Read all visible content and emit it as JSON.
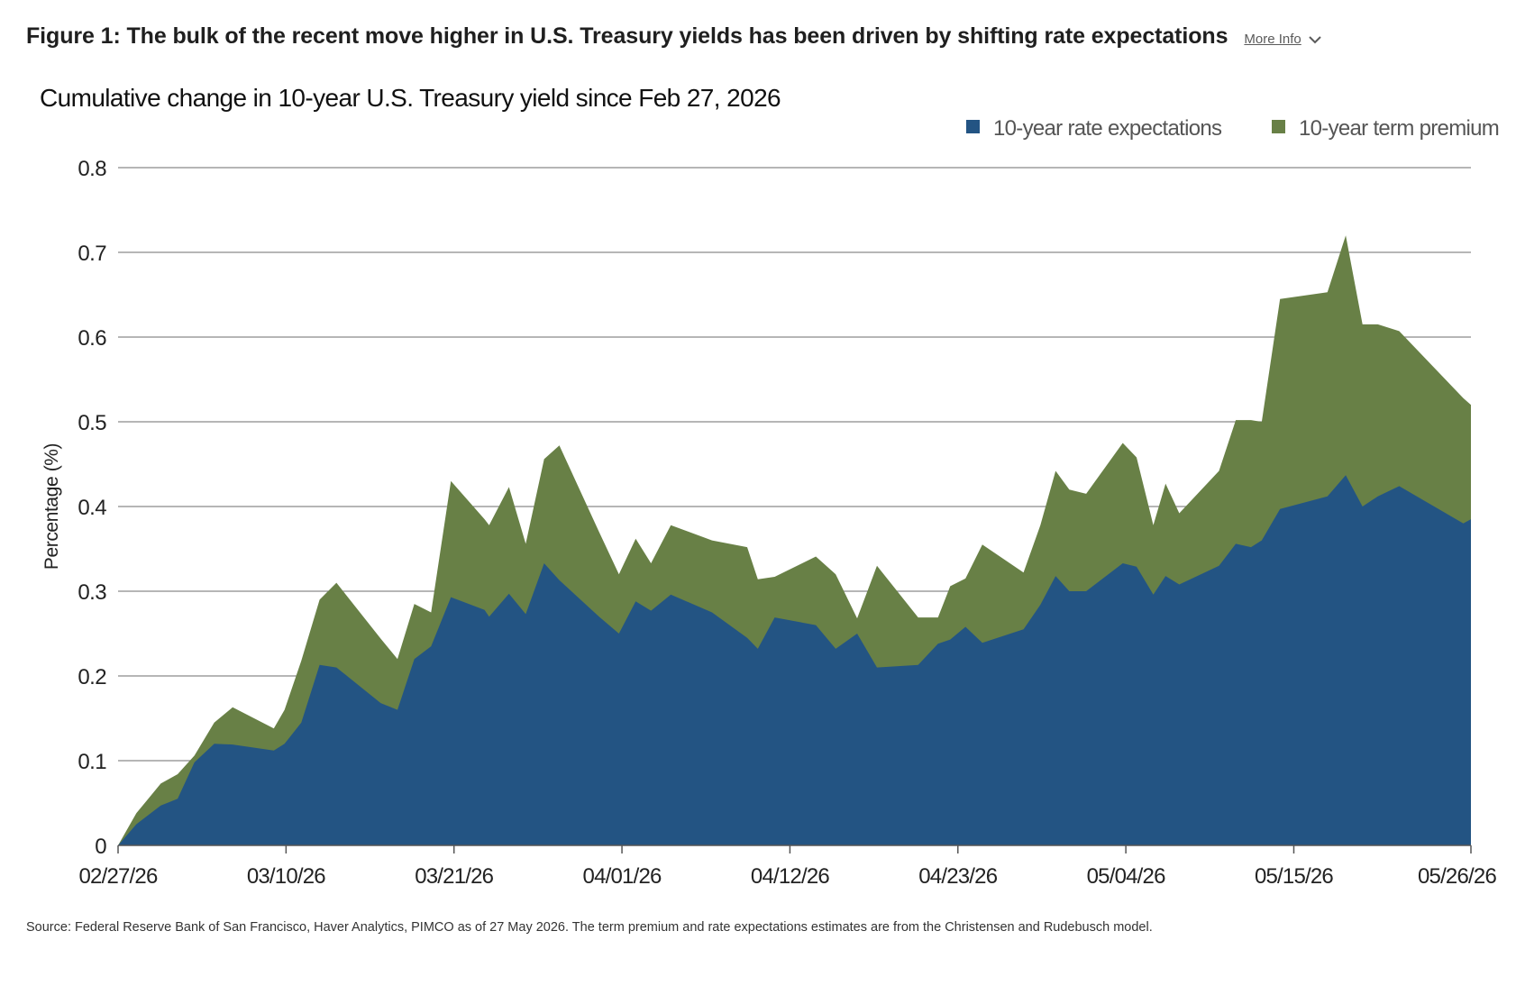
{
  "header": {
    "figure_title": "Figure 1: The bulk of the recent move higher in U.S. Treasury yields has been driven by shifting rate expectations",
    "more_info_label": "More Info"
  },
  "icons": {
    "more_info": "chevron-down-icon"
  },
  "colors": {
    "rate_expectations": "#235483",
    "term_premium": "#688046",
    "gridline": "#8a8a8a",
    "axis_text": "#222222",
    "legend_text": "#555555"
  },
  "source_note": "Source: Federal Reserve Bank of San Francisco, Haver Analytics, PIMCO as of 27 May 2026. The term premium and rate expectations estimates are from the Christensen and Rudebusch model.",
  "chart_data": {
    "type": "area",
    "stacked": true,
    "title": "Cumulative change in 10-year U.S. Treasury yield since Feb 27, 2026",
    "xlabel": "",
    "ylabel": "Percentage (%)",
    "ylim": [
      0,
      0.8
    ],
    "yticks": [
      "0",
      "0.1",
      "0.2",
      "0.3",
      "0.4",
      "0.5",
      "0.6",
      "0.7",
      "0.8"
    ],
    "xticks": [
      {
        "label": "02/27/26",
        "day": 0
      },
      {
        "label": "03/10/26",
        "day": 11
      },
      {
        "label": "03/21/26",
        "day": 22
      },
      {
        "label": "04/01/26",
        "day": 33
      },
      {
        "label": "04/12/26",
        "day": 44
      },
      {
        "label": "04/23/26",
        "day": 55
      },
      {
        "label": "05/04/26",
        "day": 66
      },
      {
        "label": "05/15/26",
        "day": 77
      },
      {
        "label": "05/26/26",
        "day": 88
      }
    ],
    "legend_position": "top-right",
    "grid": true,
    "series": [
      {
        "name": "10-year rate expectations",
        "points": [
          [
            0,
            0.0
          ],
          [
            1.2,
            0.025
          ],
          [
            2.8,
            0.047
          ],
          [
            3.9,
            0.055
          ],
          [
            5.0,
            0.098
          ],
          [
            6.3,
            0.12
          ],
          [
            7.5,
            0.119
          ],
          [
            10.2,
            0.112
          ],
          [
            10.9,
            0.12
          ],
          [
            12.0,
            0.145
          ],
          [
            13.2,
            0.213
          ],
          [
            14.3,
            0.21
          ],
          [
            17.2,
            0.168
          ],
          [
            18.3,
            0.16
          ],
          [
            19.4,
            0.22
          ],
          [
            20.5,
            0.235
          ],
          [
            21.8,
            0.293
          ],
          [
            24.0,
            0.278
          ],
          [
            24.3,
            0.27
          ],
          [
            25.6,
            0.297
          ],
          [
            26.7,
            0.273
          ],
          [
            27.9,
            0.333
          ],
          [
            28.9,
            0.313
          ],
          [
            31.5,
            0.27
          ],
          [
            32.8,
            0.25
          ],
          [
            33.9,
            0.288
          ],
          [
            34.9,
            0.277
          ],
          [
            36.2,
            0.296
          ],
          [
            38.9,
            0.275
          ],
          [
            41.2,
            0.245
          ],
          [
            41.9,
            0.232
          ],
          [
            43.0,
            0.269
          ],
          [
            45.7,
            0.26
          ],
          [
            47.0,
            0.232
          ],
          [
            48.4,
            0.25
          ],
          [
            49.7,
            0.21
          ],
          [
            52.4,
            0.213
          ],
          [
            53.7,
            0.238
          ],
          [
            54.5,
            0.243
          ],
          [
            55.5,
            0.258
          ],
          [
            56.6,
            0.239
          ],
          [
            59.3,
            0.255
          ],
          [
            60.4,
            0.284
          ],
          [
            61.4,
            0.318
          ],
          [
            62.3,
            0.3
          ],
          [
            63.4,
            0.3
          ],
          [
            65.8,
            0.333
          ],
          [
            66.7,
            0.329
          ],
          [
            67.8,
            0.296
          ],
          [
            68.6,
            0.318
          ],
          [
            69.5,
            0.308
          ],
          [
            72.1,
            0.33
          ],
          [
            73.2,
            0.356
          ],
          [
            74.2,
            0.352
          ],
          [
            74.9,
            0.36
          ],
          [
            76.1,
            0.397
          ],
          [
            79.2,
            0.412
          ],
          [
            80.4,
            0.437
          ],
          [
            81.5,
            0.4
          ],
          [
            82.5,
            0.412
          ],
          [
            83.9,
            0.424
          ],
          [
            88.1,
            0.38
          ],
          [
            88.6,
            0.385
          ]
        ]
      },
      {
        "name": "10-year term premium",
        "points": [
          [
            0,
            0.0
          ],
          [
            1.2,
            0.038
          ],
          [
            2.8,
            0.073
          ],
          [
            3.9,
            0.084
          ],
          [
            5.0,
            0.106
          ],
          [
            6.3,
            0.145
          ],
          [
            7.5,
            0.163
          ],
          [
            10.2,
            0.138
          ],
          [
            10.9,
            0.16
          ],
          [
            12.0,
            0.218
          ],
          [
            13.2,
            0.29
          ],
          [
            14.3,
            0.31
          ],
          [
            17.2,
            0.244
          ],
          [
            18.3,
            0.22
          ],
          [
            19.4,
            0.285
          ],
          [
            20.5,
            0.275
          ],
          [
            21.8,
            0.43
          ],
          [
            24.0,
            0.385
          ],
          [
            24.3,
            0.378
          ],
          [
            25.6,
            0.423
          ],
          [
            26.7,
            0.356
          ],
          [
            27.9,
            0.456
          ],
          [
            28.9,
            0.472
          ],
          [
            31.5,
            0.37
          ],
          [
            32.8,
            0.32
          ],
          [
            33.9,
            0.362
          ],
          [
            34.9,
            0.333
          ],
          [
            36.2,
            0.378
          ],
          [
            38.9,
            0.36
          ],
          [
            41.2,
            0.352
          ],
          [
            41.9,
            0.314
          ],
          [
            43.0,
            0.317
          ],
          [
            45.7,
            0.341
          ],
          [
            47.0,
            0.32
          ],
          [
            48.4,
            0.268
          ],
          [
            49.7,
            0.33
          ],
          [
            52.4,
            0.269
          ],
          [
            53.7,
            0.269
          ],
          [
            54.5,
            0.306
          ],
          [
            55.5,
            0.315
          ],
          [
            56.6,
            0.355
          ],
          [
            59.3,
            0.322
          ],
          [
            60.4,
            0.378
          ],
          [
            61.4,
            0.442
          ],
          [
            62.3,
            0.42
          ],
          [
            63.4,
            0.415
          ],
          [
            65.8,
            0.475
          ],
          [
            66.7,
            0.458
          ],
          [
            67.8,
            0.378
          ],
          [
            68.6,
            0.427
          ],
          [
            69.5,
            0.392
          ],
          [
            72.1,
            0.442
          ],
          [
            73.2,
            0.502
          ],
          [
            74.2,
            0.502
          ],
          [
            74.9,
            0.5
          ],
          [
            76.1,
            0.645
          ],
          [
            79.2,
            0.653
          ],
          [
            80.4,
            0.72
          ],
          [
            81.5,
            0.615
          ],
          [
            82.5,
            0.615
          ],
          [
            83.9,
            0.607
          ],
          [
            88.1,
            0.528
          ],
          [
            88.6,
            0.52
          ]
        ]
      }
    ]
  }
}
